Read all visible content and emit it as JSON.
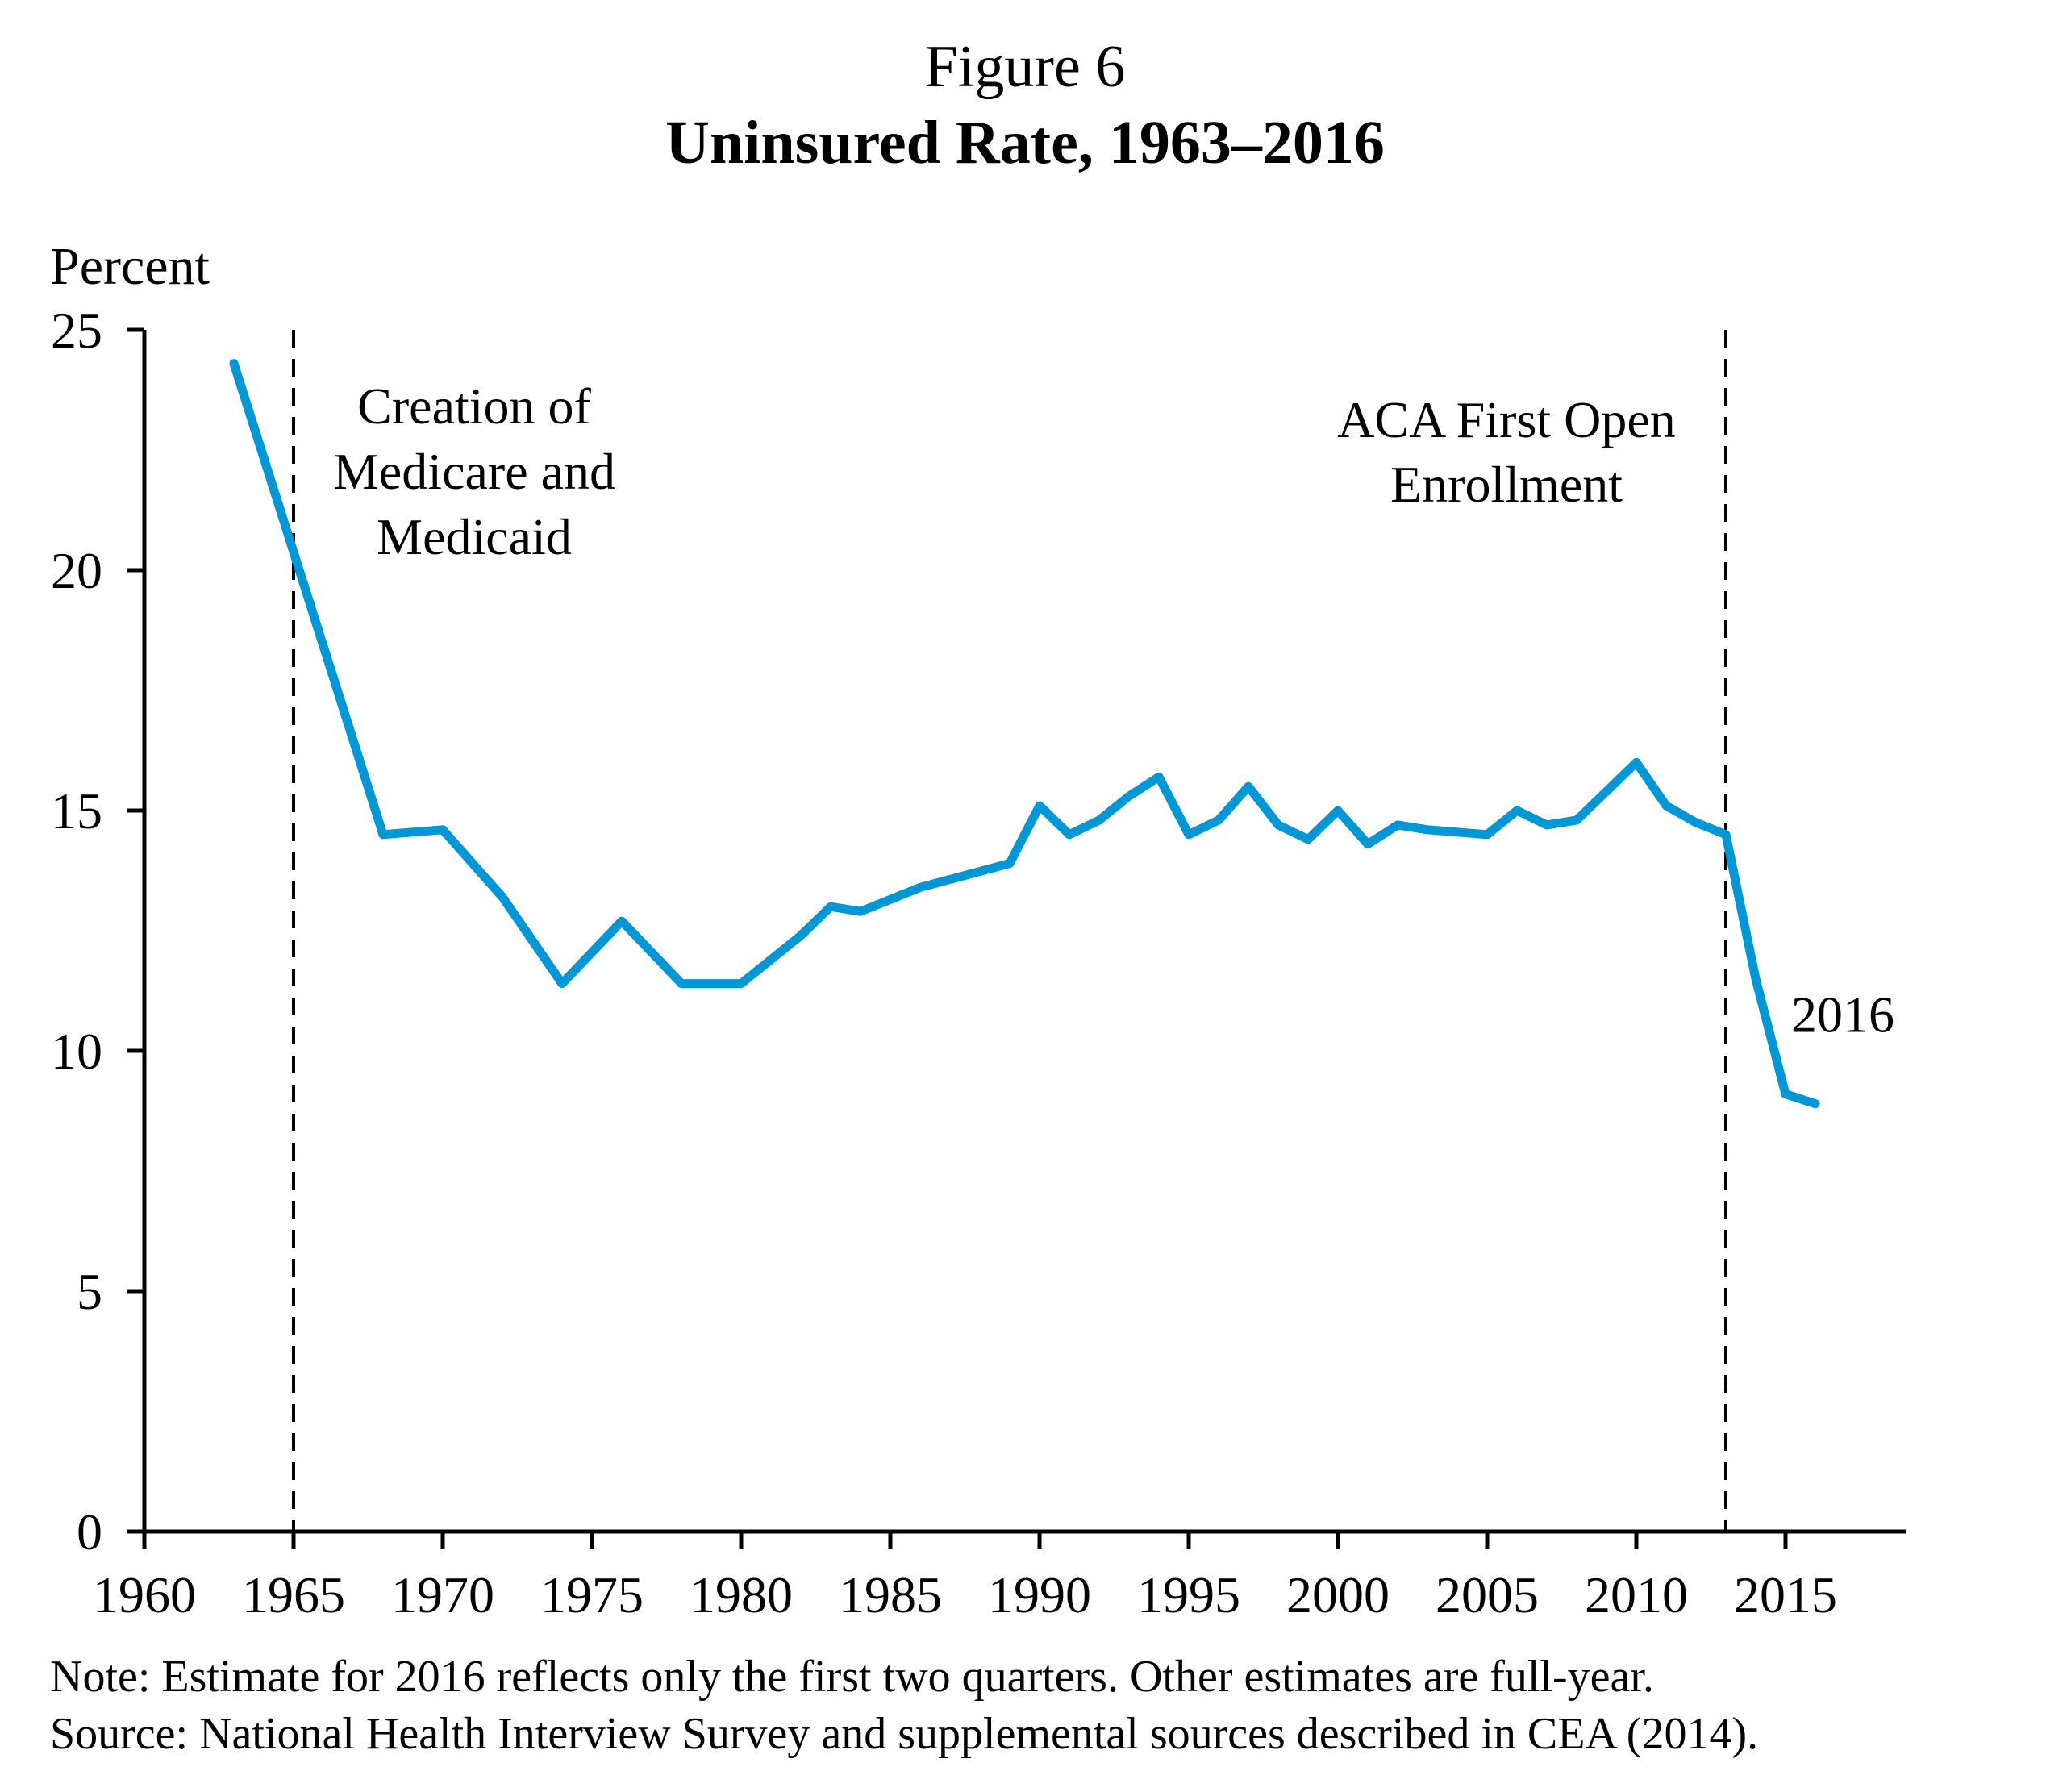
{
  "figure_label": "Figure 6",
  "chart_data": {
    "type": "line",
    "title": "Uninsured Rate, 1963–2016",
    "xlabel": "",
    "ylabel": "Percent",
    "xlim": [
      1960,
      2019
    ],
    "ylim": [
      0,
      25
    ],
    "grid": false,
    "x_ticks": [
      1960,
      1965,
      1970,
      1975,
      1980,
      1985,
      1990,
      1995,
      2000,
      2005,
      2010,
      2015
    ],
    "x_tick_labels": [
      "1960",
      "1965",
      "1970",
      "1975",
      "1980",
      "1985",
      "1990",
      "1995",
      "2000",
      "2005",
      "2010",
      "2015"
    ],
    "y_ticks": [
      0,
      5,
      10,
      15,
      20,
      25
    ],
    "y_tick_labels": [
      "0",
      "5",
      "10",
      "15",
      "20",
      "25"
    ],
    "series": [
      {
        "name": "Uninsured Rate",
        "color": "#0097D7",
        "x": [
          1963,
          1968,
          1970,
          1972,
          1974,
          1976,
          1978,
          1980,
          1982,
          1983,
          1984,
          1986,
          1989,
          1990,
          1991,
          1992,
          1993,
          1994,
          1995,
          1996,
          1997,
          1998,
          1999,
          2000,
          2001,
          2002,
          2003,
          2004,
          2005,
          2006,
          2007,
          2008,
          2009,
          2010,
          2011,
          2012,
          2013,
          2014,
          2015,
          2016
        ],
        "values": [
          24.3,
          14.5,
          14.6,
          13.2,
          11.4,
          12.7,
          11.4,
          11.4,
          12.4,
          13.0,
          12.9,
          13.4,
          13.9,
          15.1,
          14.5,
          14.8,
          15.3,
          15.7,
          14.5,
          14.8,
          15.5,
          14.7,
          14.4,
          15.0,
          14.3,
          14.7,
          14.6,
          14.55,
          14.5,
          15.0,
          14.7,
          14.8,
          15.4,
          16.0,
          15.1,
          14.75,
          14.5,
          11.5,
          9.1,
          8.9
        ]
      }
    ],
    "reference_lines": [
      {
        "x": 1965,
        "style": "dashed",
        "label_lines": [
          "Creation of",
          "Medicare and",
          "Medicaid"
        ]
      },
      {
        "x": 2013,
        "style": "dashed",
        "label_lines": [
          "ACA First Open",
          "Enrollment"
        ]
      }
    ],
    "annotations": [
      {
        "text": "2016",
        "x": 2016,
        "y": 11.2
      }
    ]
  },
  "notes": {
    "note": "Note: Estimate for 2016 reflects only the first two quarters. Other estimates are full-year.",
    "source": "Source: National Health Interview Survey and supplemental sources described in CEA (2014)."
  }
}
